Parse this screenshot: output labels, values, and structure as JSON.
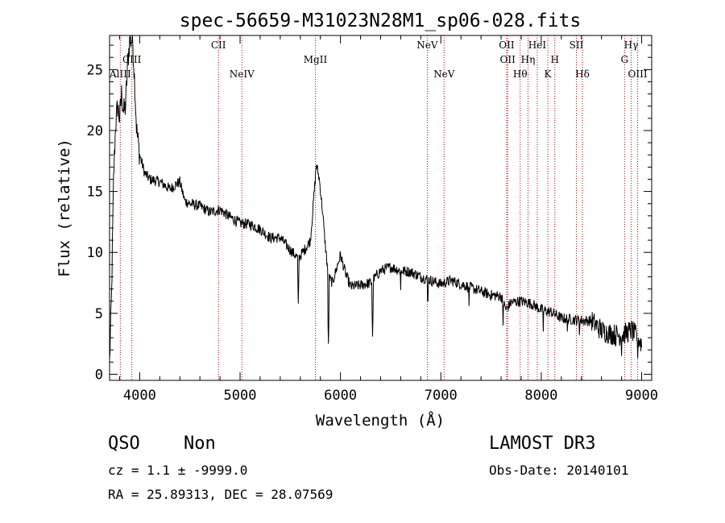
{
  "chart_data": {
    "type": "line",
    "title": "spec-56659-M31023N28M1_sp06-028.fits",
    "xlabel": "Wavelength (Å)",
    "ylabel": "Flux (relative)",
    "xlim": [
      3700,
      9100
    ],
    "ylim": [
      -0.5,
      27.8
    ],
    "x_ticks": [
      4000,
      5000,
      6000,
      7000,
      8000,
      9000
    ],
    "x_tick_labels": [
      "4000",
      "5000",
      "6000",
      "7000",
      "8000",
      "9000"
    ],
    "y_ticks": [
      0,
      5,
      10,
      15,
      20,
      25
    ],
    "y_tick_labels": [
      "0",
      "5",
      "10",
      "15",
      "20",
      "25"
    ],
    "grid": false,
    "line_color": "#000000",
    "marker_color": "#cc0000",
    "series": [
      {
        "name": "spectrum",
        "anchors": [
          [
            3700,
            1.0
          ],
          [
            3720,
            6.5
          ],
          [
            3740,
            16.0
          ],
          [
            3760,
            20.5
          ],
          [
            3780,
            22.0
          ],
          [
            3800,
            21.0
          ],
          [
            3820,
            23.0
          ],
          [
            3840,
            21.5
          ],
          [
            3860,
            22.0
          ],
          [
            3880,
            25.5
          ],
          [
            3900,
            27.3
          ],
          [
            3930,
            27.5
          ],
          [
            3950,
            24.0
          ],
          [
            3970,
            20.0
          ],
          [
            4000,
            18.0
          ],
          [
            4050,
            16.5
          ],
          [
            4100,
            16.0
          ],
          [
            4200,
            15.8
          ],
          [
            4300,
            15.2
          ],
          [
            4400,
            15.8
          ],
          [
            4450,
            14.2
          ],
          [
            4500,
            14.0
          ],
          [
            4600,
            13.8
          ],
          [
            4700,
            13.3
          ],
          [
            4800,
            13.5
          ],
          [
            4900,
            12.9
          ],
          [
            5000,
            12.4
          ],
          [
            5100,
            12.3
          ],
          [
            5200,
            11.9
          ],
          [
            5300,
            11.2
          ],
          [
            5400,
            11.2
          ],
          [
            5500,
            10.2
          ],
          [
            5580,
            9.5
          ],
          [
            5650,
            10.3
          ],
          [
            5700,
            11.0
          ],
          [
            5730,
            14.0
          ],
          [
            5760,
            17.2
          ],
          [
            5790,
            16.0
          ],
          [
            5820,
            13.5
          ],
          [
            5850,
            10.5
          ],
          [
            5880,
            8.0
          ],
          [
            5920,
            7.5
          ],
          [
            6000,
            9.8
          ],
          [
            6050,
            8.3
          ],
          [
            6100,
            7.2
          ],
          [
            6200,
            7.3
          ],
          [
            6300,
            7.5
          ],
          [
            6400,
            8.5
          ],
          [
            6500,
            8.8
          ],
          [
            6600,
            8.5
          ],
          [
            6700,
            8.4
          ],
          [
            6800,
            8.0
          ],
          [
            6900,
            7.7
          ],
          [
            7000,
            7.4
          ],
          [
            7100,
            7.7
          ],
          [
            7200,
            7.4
          ],
          [
            7300,
            7.1
          ],
          [
            7400,
            6.8
          ],
          [
            7500,
            6.5
          ],
          [
            7600,
            6.4
          ],
          [
            7650,
            5.3
          ],
          [
            7700,
            5.9
          ],
          [
            7800,
            6.0
          ],
          [
            7900,
            5.8
          ],
          [
            8000,
            5.3
          ],
          [
            8100,
            5.1
          ],
          [
            8200,
            4.6
          ],
          [
            8300,
            4.5
          ],
          [
            8400,
            4.4
          ],
          [
            8500,
            4.4
          ],
          [
            8600,
            3.6
          ],
          [
            8700,
            3.3
          ],
          [
            8800,
            3.2
          ],
          [
            8900,
            3.6
          ],
          [
            8960,
            3.0
          ],
          [
            9000,
            2.5
          ]
        ],
        "absorption_dips": [
          [
            5580,
            5.8
          ],
          [
            5880,
            2.5
          ],
          [
            6320,
            3.1
          ],
          [
            6600,
            6.9
          ],
          [
            6870,
            5.2
          ],
          [
            7280,
            5.6
          ],
          [
            7620,
            4.0
          ],
          [
            8020,
            3.5
          ],
          [
            8260,
            3.5
          ],
          [
            8380,
            3.2
          ],
          [
            8740,
            2.3
          ],
          [
            8800,
            1.5
          ],
          [
            8960,
            1.3
          ]
        ]
      }
    ],
    "line_markers": [
      {
        "label": "AlIII",
        "wavelength": 3807,
        "row": 3
      },
      {
        "label": "CIII",
        "wavelength": 3922,
        "row": 2
      },
      {
        "label": "CII",
        "wavelength": 4785,
        "row": 1
      },
      {
        "label": "NeIV",
        "wavelength": 5018,
        "row": 3
      },
      {
        "label": "MgII",
        "wavelength": 5750,
        "row": 2
      },
      {
        "label": "NeV",
        "wavelength": 6865,
        "row": 1
      },
      {
        "label": "NeV",
        "wavelength": 7032,
        "row": 3
      },
      {
        "label": "OII",
        "wavelength": 7655,
        "row": 1
      },
      {
        "label": "OII",
        "wavelength": 7665,
        "row": 2
      },
      {
        "label": "Hθ",
        "wavelength": 7790,
        "row": 3
      },
      {
        "label": "Hη",
        "wavelength": 7868,
        "row": 2
      },
      {
        "label": "HeI",
        "wavelength": 7960,
        "row": 1
      },
      {
        "label": "K",
        "wavelength": 8065,
        "row": 3
      },
      {
        "label": "H",
        "wavelength": 8135,
        "row": 2
      },
      {
        "label": "SII",
        "wavelength": 8350,
        "row": 1
      },
      {
        "label": "Hδ",
        "wavelength": 8410,
        "row": 3
      },
      {
        "label": "G",
        "wavelength": 8830,
        "row": 2
      },
      {
        "label": "Hγ",
        "wavelength": 8895,
        "row": 1
      },
      {
        "label": "OIII",
        "wavelength": 8960,
        "row": 3
      }
    ]
  },
  "info": {
    "class": "QSO",
    "subclass": "Non",
    "survey": "LAMOST DR3",
    "cz": "cz = 1.1 ± -9999.0",
    "obs_date": "Obs-Date: 20140101",
    "coords": "RA =  25.89313, DEC =  28.07569"
  }
}
